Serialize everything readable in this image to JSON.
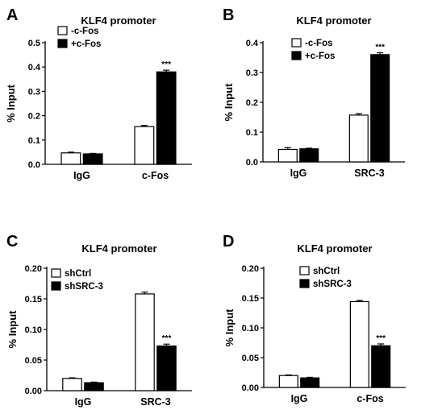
{
  "chart_data": [
    {
      "type": "bar",
      "panel": "A",
      "title": "KLF4 promoter",
      "ylabel": "% Input",
      "ylim": [
        0,
        0.5
      ],
      "yticks": [
        "0.0",
        "0.1",
        "0.2",
        "0.3",
        "0.4",
        "0.5"
      ],
      "categories": [
        "IgG",
        "c-Fos"
      ],
      "series": [
        {
          "name": "-c-Fos",
          "fill": "#ffffff",
          "values": [
            0.047,
            0.155
          ],
          "errors": [
            0.003,
            0.005
          ],
          "significance": [
            "",
            ""
          ]
        },
        {
          "name": "+c-Fos",
          "fill": "#000000",
          "values": [
            0.043,
            0.38
          ],
          "errors": [
            0.002,
            0.007
          ],
          "significance": [
            "",
            "***"
          ]
        }
      ]
    },
    {
      "type": "bar",
      "panel": "B",
      "title": "KLF4 promoter",
      "ylabel": "% Input",
      "ylim": [
        0,
        0.4
      ],
      "yticks": [
        "0.0",
        "0.1",
        "0.2",
        "0.3",
        "0.4"
      ],
      "categories": [
        "IgG",
        "SRC-3"
      ],
      "series": [
        {
          "name": "-c-Fos",
          "fill": "#ffffff",
          "values": [
            0.042,
            0.157
          ],
          "errors": [
            0.006,
            0.005
          ],
          "significance": [
            "",
            ""
          ]
        },
        {
          "name": "+c-Fos",
          "fill": "#000000",
          "values": [
            0.044,
            0.36
          ],
          "errors": [
            0.002,
            0.006
          ],
          "significance": [
            "",
            "***"
          ]
        }
      ]
    },
    {
      "type": "bar",
      "panel": "C",
      "title": "KLF4 promoter",
      "ylabel": "% Input",
      "ylim": [
        0,
        0.2
      ],
      "yticks": [
        "0.00",
        "0.05",
        "0.10",
        "0.15",
        "0.20"
      ],
      "categories": [
        "IgG",
        "SRC-3"
      ],
      "series": [
        {
          "name": "shCtrl",
          "fill": "#ffffff",
          "values": [
            0.02,
            0.158
          ],
          "errors": [
            0.001,
            0.003
          ],
          "significance": [
            "",
            ""
          ]
        },
        {
          "name": "shSRC-3",
          "fill": "#000000",
          "values": [
            0.013,
            0.073
          ],
          "errors": [
            0.001,
            0.003
          ],
          "significance": [
            "",
            "***"
          ]
        }
      ]
    },
    {
      "type": "bar",
      "panel": "D",
      "title": "KLF4 promoter",
      "ylabel": "% Input",
      "ylim": [
        0,
        0.2
      ],
      "yticks": [
        "0.00",
        "0.05",
        "0.10",
        "0.15",
        "0.20"
      ],
      "categories": [
        "IgG",
        "c-Fos"
      ],
      "series": [
        {
          "name": "shCtrl",
          "fill": "#ffffff",
          "values": [
            0.02,
            0.144
          ],
          "errors": [
            0.001,
            0.002
          ],
          "significance": [
            "",
            ""
          ]
        },
        {
          "name": "shSRC-3",
          "fill": "#000000",
          "values": [
            0.016,
            0.07
          ],
          "errors": [
            0.001,
            0.003
          ],
          "significance": [
            "",
            "***"
          ]
        }
      ]
    }
  ]
}
